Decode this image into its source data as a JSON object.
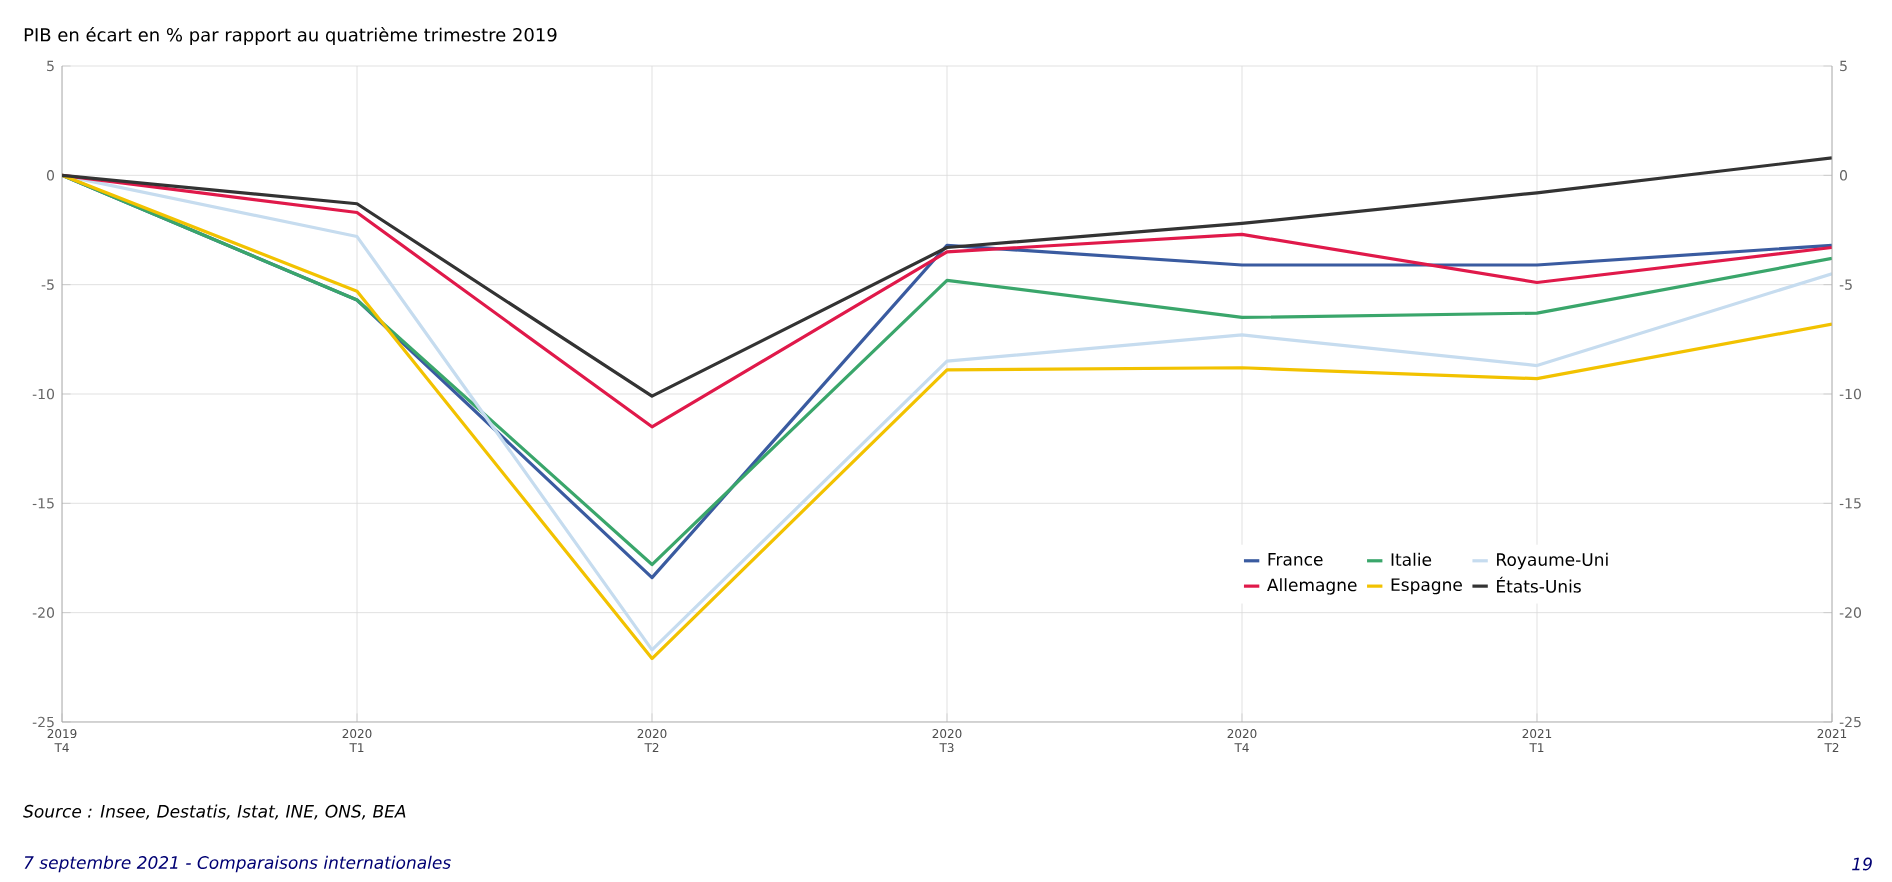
{
  "chart_data": {
    "type": "line",
    "title": "PIB en écart en % par rapport au quatrième trimestre 2019",
    "categories": [
      "2019 T4",
      "2020 T1",
      "2020 T2",
      "2020 T3",
      "2020 T4",
      "2021 T1",
      "2021 T2"
    ],
    "series": [
      {
        "name": "France",
        "color": "#3a5ba0",
        "values": [
          0,
          -5.7,
          -18.4,
          -3.2,
          -4.1,
          -4.1,
          -3.2
        ]
      },
      {
        "name": "Italie",
        "color": "#3aa66b",
        "values": [
          0,
          -5.7,
          -17.8,
          -4.8,
          -6.5,
          -6.3,
          -3.8
        ]
      },
      {
        "name": "Royaume-Uni",
        "color": "#c6dcef",
        "values": [
          0,
          -2.8,
          -21.7,
          -8.5,
          -7.3,
          -8.7,
          -4.5
        ]
      },
      {
        "name": "Allemagne",
        "color": "#e0194a",
        "values": [
          0,
          -1.7,
          -11.5,
          -3.5,
          -2.7,
          -4.9,
          -3.3
        ]
      },
      {
        "name": "Espagne",
        "color": "#f2c200",
        "values": [
          0,
          -5.3,
          -22.1,
          -8.9,
          -8.8,
          -9.3,
          -6.8
        ]
      },
      {
        "name": "États-Unis",
        "color": "#333333",
        "values": [
          0,
          -1.3,
          -10.1,
          -3.3,
          -2.2,
          -0.8,
          0.8
        ]
      }
    ],
    "ylim": [
      -25,
      5
    ],
    "yticks": [
      -25,
      -20,
      -15,
      -10,
      -5,
      0,
      5
    ],
    "y2lim": [
      -25,
      5
    ],
    "y2ticks": [
      -25,
      -20,
      -15,
      -10,
      -5,
      0,
      5
    ],
    "grid": true,
    "legend": "bottom right",
    "marker": "none",
    "line_style": "solid",
    "annotations": [
      "Source : Insee, Destatis, Istat, INE, ONS, BEA",
      "7 septembre 2021 - Comparaisons internationales",
      "19"
    ]
  }
}
